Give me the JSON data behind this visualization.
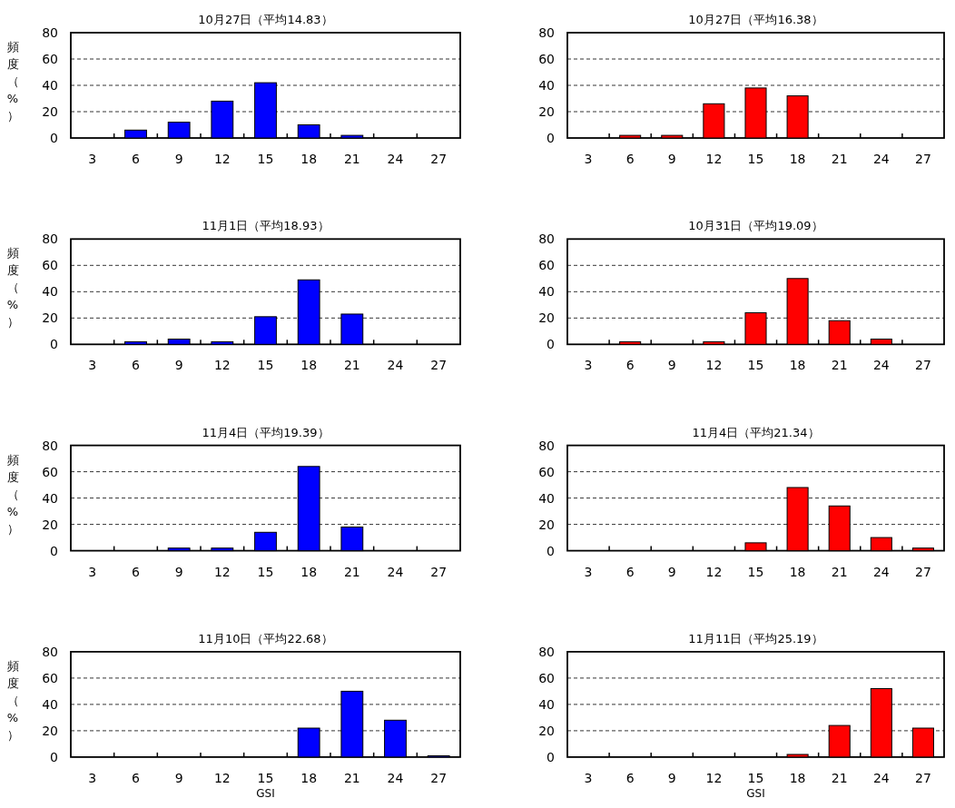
{
  "chart_data": [
    {
      "type": "bar",
      "title": "10月27日（平均14.83）",
      "ylabel": "頻度（%）",
      "categories": [
        "3",
        "6",
        "9",
        "12",
        "15",
        "18",
        "21",
        "24",
        "27"
      ],
      "values": [
        0,
        6,
        12,
        28,
        42,
        10,
        2,
        0,
        0
      ],
      "color": "#0000ff",
      "ylim": [
        0,
        80
      ],
      "yticks": [
        0,
        20,
        40,
        60,
        80
      ],
      "grid": "y"
    },
    {
      "type": "bar",
      "title": "10月27日（平均16.38）",
      "categories": [
        "3",
        "6",
        "9",
        "12",
        "15",
        "18",
        "21",
        "24",
        "27"
      ],
      "values": [
        0,
        2,
        2,
        26,
        38,
        32,
        0,
        0,
        0
      ],
      "color": "#ff0000",
      "ylim": [
        0,
        80
      ],
      "yticks": [
        0,
        20,
        40,
        60,
        80
      ],
      "grid": "y"
    },
    {
      "type": "bar",
      "title": "11月1日（平均18.93）",
      "ylabel": "頻度（%）",
      "categories": [
        "3",
        "6",
        "9",
        "12",
        "15",
        "18",
        "21",
        "24",
        "27"
      ],
      "values": [
        0,
        2,
        4,
        2,
        21,
        49,
        23,
        0,
        0
      ],
      "color": "#0000ff",
      "ylim": [
        0,
        80
      ],
      "yticks": [
        0,
        20,
        40,
        60,
        80
      ],
      "grid": "y"
    },
    {
      "type": "bar",
      "title": "10月31日（平均19.09）",
      "categories": [
        "3",
        "6",
        "9",
        "12",
        "15",
        "18",
        "21",
        "24",
        "27"
      ],
      "values": [
        0,
        2,
        0,
        2,
        24,
        50,
        18,
        4,
        0
      ],
      "color": "#ff0000",
      "ylim": [
        0,
        80
      ],
      "yticks": [
        0,
        20,
        40,
        60,
        80
      ],
      "grid": "y"
    },
    {
      "type": "bar",
      "title": "11月4日（平均19.39）",
      "ylabel": "頻度（%）",
      "categories": [
        "3",
        "6",
        "9",
        "12",
        "15",
        "18",
        "21",
        "24",
        "27"
      ],
      "values": [
        0,
        0,
        2,
        2,
        14,
        64,
        18,
        0,
        0
      ],
      "color": "#0000ff",
      "ylim": [
        0,
        80
      ],
      "yticks": [
        0,
        20,
        40,
        60,
        80
      ],
      "grid": "y"
    },
    {
      "type": "bar",
      "title": "11月4日（平均21.34）",
      "categories": [
        "3",
        "6",
        "9",
        "12",
        "15",
        "18",
        "21",
        "24",
        "27"
      ],
      "values": [
        0,
        0,
        0,
        0,
        6,
        48,
        34,
        10,
        2
      ],
      "color": "#ff0000",
      "ylim": [
        0,
        80
      ],
      "yticks": [
        0,
        20,
        40,
        60,
        80
      ],
      "grid": "y"
    },
    {
      "type": "bar",
      "title": "11月10日（平均22.68）",
      "ylabel": "頻度（%）",
      "xlabel": "GSI",
      "categories": [
        "3",
        "6",
        "9",
        "12",
        "15",
        "18",
        "21",
        "24",
        "27"
      ],
      "values": [
        0,
        0,
        0,
        0,
        0,
        22,
        50,
        28,
        1
      ],
      "color": "#0000ff",
      "ylim": [
        0,
        80
      ],
      "yticks": [
        0,
        20,
        40,
        60,
        80
      ],
      "grid": "y"
    },
    {
      "type": "bar",
      "title": "11月11日（平均25.19）",
      "xlabel": "GSI",
      "categories": [
        "3",
        "6",
        "9",
        "12",
        "15",
        "18",
        "21",
        "24",
        "27"
      ],
      "values": [
        0,
        0,
        0,
        0,
        0,
        2,
        24,
        52,
        22
      ],
      "color": "#ff0000",
      "ylim": [
        0,
        80
      ],
      "yticks": [
        0,
        20,
        40,
        60,
        80
      ],
      "grid": "y"
    }
  ]
}
